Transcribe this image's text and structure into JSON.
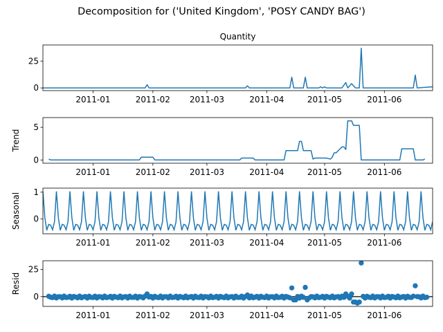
{
  "figure": {
    "suptitle": "Decomposition for ('United Kingdom', 'POSY CANDY BAG')"
  },
  "colors": {
    "series": "#1f77b4",
    "axis": "#000000",
    "zero_line": "#000000"
  },
  "x_axis": {
    "start": "2010-12-06",
    "end": "2011-06-26",
    "ticks": [
      {
        "date": "2011-01-01",
        "label": "2011-01"
      },
      {
        "date": "2011-02-01",
        "label": "2011-02"
      },
      {
        "date": "2011-03-01",
        "label": "2011-03"
      },
      {
        "date": "2011-04-01",
        "label": "2011-04"
      },
      {
        "date": "2011-05-01",
        "label": "2011-05"
      },
      {
        "date": "2011-06-01",
        "label": "2011-06"
      }
    ]
  },
  "chart_data": [
    {
      "type": "line",
      "title": "Quantity",
      "ylabel": "",
      "ylim": [
        -2.5,
        40
      ],
      "yticks": [
        0,
        25
      ],
      "series": [
        {
          "points": [
            [
              "2010-12-06",
              0
            ],
            [
              "2011-01-28",
              0
            ],
            [
              "2011-01-29",
              3
            ],
            [
              "2011-01-30",
              0
            ],
            [
              "2011-03-21",
              0
            ],
            [
              "2011-03-22",
              2
            ],
            [
              "2011-03-23",
              0
            ],
            [
              "2011-04-13",
              0
            ],
            [
              "2011-04-14",
              10
            ],
            [
              "2011-04-15",
              0
            ],
            [
              "2011-04-20",
              0
            ],
            [
              "2011-04-21",
              10
            ],
            [
              "2011-04-22",
              0
            ],
            [
              "2011-04-28",
              0
            ],
            [
              "2011-04-29",
              1
            ],
            [
              "2011-04-30",
              0
            ],
            [
              "2011-05-01",
              1
            ],
            [
              "2011-05-02",
              0
            ],
            [
              "2011-05-10",
              0
            ],
            [
              "2011-05-12",
              5
            ],
            [
              "2011-05-13",
              0
            ],
            [
              "2011-05-15",
              4
            ],
            [
              "2011-05-17",
              0
            ],
            [
              "2011-05-19",
              0
            ],
            [
              "2011-05-20",
              37
            ],
            [
              "2011-05-21",
              0
            ],
            [
              "2011-06-16",
              0
            ],
            [
              "2011-06-17",
              12
            ],
            [
              "2011-06-18",
              0
            ],
            [
              "2011-06-26",
              1
            ]
          ]
        }
      ]
    },
    {
      "type": "line",
      "title": "",
      "ylabel": "Trend",
      "ylim": [
        -0.5,
        6.5
      ],
      "yticks": [
        0,
        5
      ],
      "series": [
        {
          "points": [
            [
              "2010-12-09",
              0.15
            ],
            [
              "2010-12-10",
              0
            ],
            [
              "2011-01-25",
              0
            ],
            [
              "2011-01-26",
              0.43
            ],
            [
              "2011-02-01",
              0.43
            ],
            [
              "2011-02-02",
              0
            ],
            [
              "2011-03-18",
              0
            ],
            [
              "2011-03-19",
              0.29
            ],
            [
              "2011-03-25",
              0.29
            ],
            [
              "2011-03-26",
              0
            ],
            [
              "2011-04-10",
              0
            ],
            [
              "2011-04-11",
              1.43
            ],
            [
              "2011-04-17",
              1.43
            ],
            [
              "2011-04-18",
              2.86
            ],
            [
              "2011-04-19",
              2.86
            ],
            [
              "2011-04-20",
              1.43
            ],
            [
              "2011-04-24",
              1.43
            ],
            [
              "2011-04-25",
              0.14
            ],
            [
              "2011-04-26",
              0.29
            ],
            [
              "2011-05-02",
              0.29
            ],
            [
              "2011-05-04",
              0.14
            ],
            [
              "2011-05-05",
              0.43
            ],
            [
              "2011-05-06",
              1.1
            ],
            [
              "2011-05-07",
              1.1
            ],
            [
              "2011-05-09",
              1.7
            ],
            [
              "2011-05-10",
              2.0
            ],
            [
              "2011-05-11",
              2.0
            ],
            [
              "2011-05-12",
              1.6
            ],
            [
              "2011-05-13",
              6.0
            ],
            [
              "2011-05-15",
              6.0
            ],
            [
              "2011-05-16",
              5.3
            ],
            [
              "2011-05-19",
              5.3
            ],
            [
              "2011-05-20",
              0
            ],
            [
              "2011-06-09",
              0
            ],
            [
              "2011-06-10",
              1.71
            ],
            [
              "2011-06-16",
              1.71
            ],
            [
              "2011-06-17",
              0
            ],
            [
              "2011-06-21",
              0
            ],
            [
              "2011-06-22",
              0.15
            ]
          ]
        }
      ]
    },
    {
      "type": "line",
      "title": "",
      "ylabel": "Seasonal",
      "ylim": [
        -0.55,
        1.15
      ],
      "yticks": [
        0,
        1
      ],
      "seasonal": {
        "period_days": 7,
        "pattern": [
          1.03,
          0.05,
          -0.42,
          -0.2,
          -0.23,
          -0.4,
          -0.1
        ]
      },
      "series": [
        {
          "points": []
        }
      ]
    },
    {
      "type": "scatter",
      "title": "",
      "ylabel": "Resid",
      "ylim": [
        -9,
        33
      ],
      "yticks": [
        0,
        25
      ],
      "zero_line": true,
      "series": [
        {
          "points": [
            [
              "2011-01-29",
              2.5
            ],
            [
              "2011-03-22",
              1.5
            ],
            [
              "2011-04-14",
              8
            ],
            [
              "2011-04-21",
              8.5
            ],
            [
              "2011-05-12",
              2.5
            ],
            [
              "2011-05-15",
              2.5
            ],
            [
              "2011-05-20",
              31
            ],
            [
              "2011-06-17",
              10
            ],
            [
              "2011-04-15",
              -3
            ],
            [
              "2011-04-16",
              -3
            ],
            [
              "2011-04-22",
              -3
            ],
            [
              "2011-05-16",
              -5
            ],
            [
              "2011-05-17",
              -5
            ],
            [
              "2011-05-18",
              -6
            ],
            [
              "2011-05-19",
              -5
            ]
          ],
          "noise_amplitude": 1.3
        }
      ]
    }
  ]
}
